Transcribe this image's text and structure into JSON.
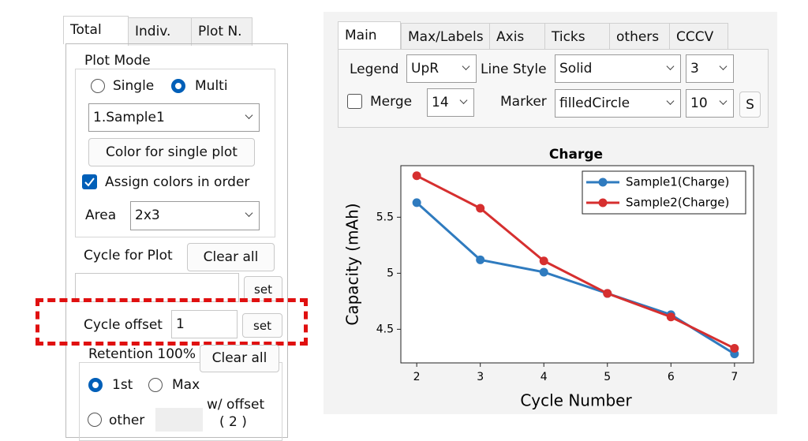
{
  "left_panel": {
    "tabs": [
      "Total",
      "Indiv.",
      "Plot N."
    ],
    "plot_mode": {
      "title": "Plot Mode",
      "options": [
        "Single",
        "Multi"
      ],
      "sample": "1.Sample1",
      "color_button": "Color for single plot",
      "assign_colors": "Assign colors in order",
      "area_label": "Area",
      "area_value": "2x3"
    },
    "cycle_for_plot": {
      "label": "Cycle for Plot",
      "clear": "Clear all",
      "set": "set"
    },
    "cycle_offset": {
      "label": "Cycle offset",
      "value": "1",
      "set": "set"
    },
    "retention": {
      "title": "Retention 100%",
      "clear": "Clear all",
      "options": [
        "1st",
        "Max",
        "other"
      ],
      "offset_label": "w/ offset",
      "offset_value": "( 2 )"
    }
  },
  "right_panel": {
    "tabs": [
      "Main",
      "Max/Labels",
      "Axis",
      "Ticks",
      "others",
      "CCCV"
    ],
    "legend_label": "Legend",
    "legend_value": "UpR",
    "line_style_label": "Line Style",
    "line_style_value": "Solid",
    "line_width": "3",
    "merge_label": "Merge",
    "font_size": "14",
    "marker_label": "Marker",
    "marker_value": "filledCircle",
    "marker_size": "10",
    "s_button": "S"
  },
  "chart_data": {
    "type": "line",
    "title": "Charge",
    "x_label": "Cycle Number",
    "y_label": "Capacity (mAh)",
    "x": [
      2,
      3,
      4,
      5,
      6,
      7
    ],
    "series": [
      {
        "name": "Sample1(Charge)",
        "color": "#2f7bbf",
        "values": [
          5.63,
          5.12,
          5.01,
          4.82,
          4.63,
          4.28
        ]
      },
      {
        "name": "Sample2(Charge)",
        "color": "#d62f2f",
        "values": [
          5.87,
          5.58,
          5.11,
          4.82,
          4.61,
          4.33
        ]
      }
    ],
    "xlim": [
      1.75,
      7.3
    ],
    "xticks": [
      2,
      3,
      4,
      5,
      6,
      7
    ],
    "ylim": [
      4.2,
      5.96
    ],
    "yticks": [
      4.5,
      5,
      5.5
    ],
    "legend": "upper right",
    "grid": false
  }
}
